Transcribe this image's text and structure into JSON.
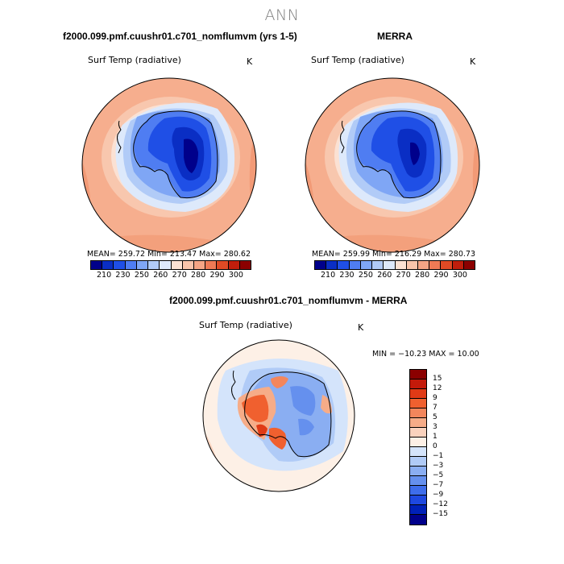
{
  "figure": {
    "title": "ANN"
  },
  "panels": [
    {
      "title": "f2000.099.pmf.cuushr01.c701_nomflumvm (yrs 1-5)",
      "var_label": "Surf Temp (radiative)",
      "units": "K",
      "stats": {
        "mean": "259.72",
        "min": "213.47",
        "max": "280.62"
      },
      "stats_text": "MEAN= 259.72   Min= 213.47   Max= 280.62"
    },
    {
      "title": "MERRA",
      "var_label": "Surf Temp (radiative)",
      "units": "K",
      "stats": {
        "mean": "259.99",
        "min": "216.29",
        "max": "280.73"
      },
      "stats_text": "MEAN= 259.99   Min= 216.29   Max= 280.73"
    },
    {
      "title": "f2000.099.pmf.cuushr01.c701_nomflumvm - MERRA",
      "var_label": "Surf Temp (radiative)",
      "units": "K",
      "stats": {
        "min": "-10.23",
        "max": "10.00"
      },
      "stats_text": "MIN = −10.23 MAX =   10.00"
    }
  ],
  "colorbars": {
    "absolute": {
      "colors": [
        "#00008b",
        "#0a2ec4",
        "#1f4fe6",
        "#4f7df2",
        "#7fa6f5",
        "#b1cbf7",
        "#dde9fb",
        "#fbe1d3",
        "#f8c4ab",
        "#f5a585",
        "#ef7a55",
        "#e04a25",
        "#bf1e0c",
        "#8b0000"
      ],
      "tick_labels": [
        "210",
        "230",
        "250",
        "260",
        "270",
        "280",
        "290",
        "300"
      ]
    },
    "difference": {
      "colors": [
        "#8b0000",
        "#c41a0a",
        "#e03a16",
        "#f0602f",
        "#f3865c",
        "#f6ac88",
        "#fad2bd",
        "#fdf0e6",
        "#d4e4fb",
        "#b0cbf7",
        "#8aaef2",
        "#6590ee",
        "#3e6deb",
        "#1e48e0",
        "#0020b8",
        "#00008b"
      ],
      "tick_labels": [
        "15",
        "12",
        "9",
        "7",
        "5",
        "3",
        "1",
        "0",
        "−1",
        "−3",
        "−5",
        "−7",
        "−9",
        "−12",
        "−15"
      ]
    }
  }
}
